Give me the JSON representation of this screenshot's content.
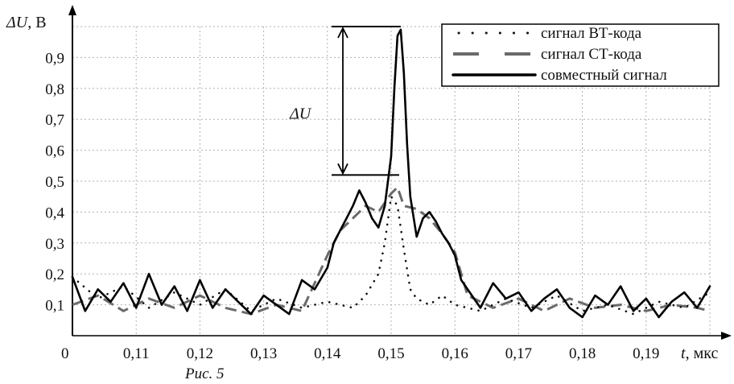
{
  "chart_data": {
    "type": "line",
    "title": "",
    "caption": "Рис. 5",
    "xlabel": {
      "var": "t",
      "unit": ", мкс"
    },
    "ylabel": {
      "var": "ΔU",
      "unit": ", В"
    },
    "origin_label": "0",
    "xlim": [
      0.1,
      0.2
    ],
    "ylim": [
      0.0,
      1.0
    ],
    "x_ticks": [
      "0,11",
      "0,12",
      "0,13",
      "0,14",
      "0,15",
      "0,16",
      "0,17",
      "0,18",
      "0,19"
    ],
    "y_ticks": [
      "0,1",
      "0,2",
      "0,3",
      "0,4",
      "0,5",
      "0,6",
      "0,7",
      "0,8",
      "0,9"
    ],
    "grid": true,
    "legend_position": "top-right",
    "annotation": {
      "label": "ΔU",
      "from": 0.52,
      "to": 1.0
    },
    "series": [
      {
        "name": "сигнал ВТ-кода",
        "style": "dotted",
        "color": "#111111",
        "x": [
          0.1,
          0.104,
          0.108,
          0.112,
          0.116,
          0.12,
          0.124,
          0.128,
          0.132,
          0.136,
          0.14,
          0.144,
          0.146,
          0.148,
          0.149,
          0.15,
          0.151,
          0.152,
          0.153,
          0.154,
          0.156,
          0.158,
          0.16,
          0.164,
          0.168,
          0.172,
          0.176,
          0.18,
          0.184,
          0.188,
          0.192,
          0.196,
          0.2
        ],
        "values": [
          0.19,
          0.12,
          0.16,
          0.09,
          0.14,
          0.1,
          0.15,
          0.08,
          0.12,
          0.09,
          0.11,
          0.09,
          0.13,
          0.2,
          0.3,
          0.45,
          0.42,
          0.28,
          0.15,
          0.12,
          0.1,
          0.13,
          0.1,
          0.08,
          0.12,
          0.09,
          0.13,
          0.08,
          0.1,
          0.07,
          0.11,
          0.09,
          0.14
        ]
      },
      {
        "name": "сигнал СТ-кода",
        "style": "dashed",
        "color": "#6a6a6a",
        "x": [
          0.1,
          0.104,
          0.108,
          0.112,
          0.116,
          0.12,
          0.124,
          0.128,
          0.132,
          0.136,
          0.14,
          0.142,
          0.144,
          0.146,
          0.148,
          0.15,
          0.151,
          0.152,
          0.154,
          0.156,
          0.158,
          0.16,
          0.162,
          0.166,
          0.17,
          0.174,
          0.178,
          0.182,
          0.186,
          0.19,
          0.194,
          0.198,
          0.2
        ],
        "values": [
          0.1,
          0.13,
          0.08,
          0.12,
          0.09,
          0.13,
          0.09,
          0.07,
          0.1,
          0.08,
          0.26,
          0.34,
          0.38,
          0.42,
          0.4,
          0.46,
          0.48,
          0.42,
          0.41,
          0.38,
          0.33,
          0.27,
          0.13,
          0.09,
          0.12,
          0.08,
          0.12,
          0.09,
          0.1,
          0.08,
          0.1,
          0.09,
          0.08
        ]
      },
      {
        "name": "совместный сигнал",
        "style": "solid",
        "color": "#000000",
        "x": [
          0.1,
          0.102,
          0.104,
          0.106,
          0.108,
          0.11,
          0.112,
          0.114,
          0.116,
          0.118,
          0.12,
          0.122,
          0.124,
          0.126,
          0.128,
          0.13,
          0.132,
          0.134,
          0.136,
          0.138,
          0.14,
          0.141,
          0.142,
          0.143,
          0.144,
          0.145,
          0.146,
          0.147,
          0.148,
          0.149,
          0.15,
          0.1505,
          0.151,
          0.1515,
          0.152,
          0.1525,
          0.153,
          0.154,
          0.155,
          0.156,
          0.157,
          0.158,
          0.159,
          0.16,
          0.161,
          0.162,
          0.164,
          0.166,
          0.168,
          0.17,
          0.172,
          0.174,
          0.176,
          0.178,
          0.18,
          0.182,
          0.184,
          0.186,
          0.188,
          0.19,
          0.192,
          0.194,
          0.196,
          0.198,
          0.2
        ],
        "values": [
          0.19,
          0.08,
          0.15,
          0.11,
          0.17,
          0.09,
          0.2,
          0.1,
          0.16,
          0.08,
          0.18,
          0.09,
          0.15,
          0.11,
          0.07,
          0.13,
          0.1,
          0.07,
          0.18,
          0.15,
          0.22,
          0.3,
          0.34,
          0.38,
          0.42,
          0.47,
          0.43,
          0.38,
          0.35,
          0.42,
          0.58,
          0.8,
          0.97,
          0.99,
          0.85,
          0.62,
          0.45,
          0.32,
          0.38,
          0.4,
          0.37,
          0.33,
          0.3,
          0.26,
          0.18,
          0.15,
          0.09,
          0.17,
          0.12,
          0.14,
          0.08,
          0.12,
          0.15,
          0.09,
          0.06,
          0.13,
          0.1,
          0.16,
          0.08,
          0.12,
          0.06,
          0.11,
          0.14,
          0.09,
          0.16
        ]
      }
    ]
  }
}
